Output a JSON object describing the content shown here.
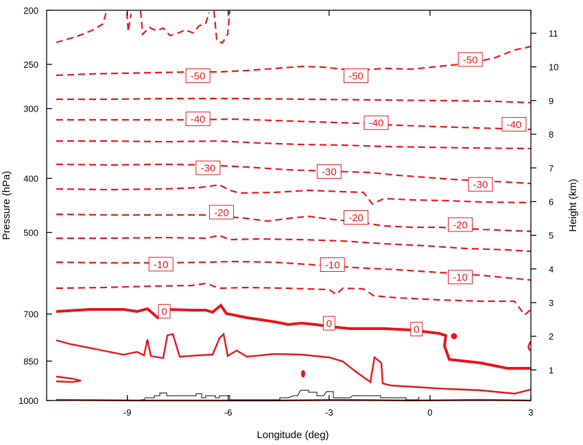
{
  "chart_data": {
    "type": "contour",
    "xlabel": "Longitude (deg)",
    "ylabel": "Pressure (hPa)",
    "y2label": "Height (km)",
    "xlim": [
      -11.4,
      3
    ],
    "x_ticks": [
      -9,
      -6,
      -3,
      0,
      3
    ],
    "x_tick_labels": [
      "-9",
      "-6",
      "-3",
      "0",
      "3"
    ],
    "y_ticks": [
      200,
      250,
      300,
      400,
      500,
      700,
      850,
      1000
    ],
    "y_tick_labels": [
      "200",
      "250",
      "300",
      "400",
      "500",
      "700",
      "850",
      "1000"
    ],
    "y2_ticks": [
      1,
      2,
      3,
      4,
      5,
      6,
      7,
      8,
      9,
      10,
      11
    ],
    "y2_tick_labels": [
      "1",
      "2",
      "3",
      "4",
      "5",
      "6",
      "7",
      "8",
      "9",
      "10",
      "11"
    ],
    "line_color": "#e8141b",
    "terrain_color": "#000000",
    "contour_labels": [
      {
        "text": "-50",
        "x": -6.9,
        "p": 262
      },
      {
        "text": "-50",
        "x": -2.2,
        "p": 262
      },
      {
        "text": "-50",
        "x": 1.2,
        "p": 245
      },
      {
        "text": "-40",
        "x": -6.9,
        "p": 313
      },
      {
        "text": "-40",
        "x": -1.6,
        "p": 318
      },
      {
        "text": "-40",
        "x": 2.5,
        "p": 320
      },
      {
        "text": "-30",
        "x": -6.6,
        "p": 383
      },
      {
        "text": "-30",
        "x": -3.0,
        "p": 389
      },
      {
        "text": "-30",
        "x": 1.5,
        "p": 410
      },
      {
        "text": "-20",
        "x": -6.2,
        "p": 460
      },
      {
        "text": "-20",
        "x": -2.2,
        "p": 470
      },
      {
        "text": "-20",
        "x": 0.9,
        "p": 484
      },
      {
        "text": "-10",
        "x": -8.0,
        "p": 570
      },
      {
        "text": "-10",
        "x": -2.9,
        "p": 571
      },
      {
        "text": "-10",
        "x": 0.9,
        "p": 601
      },
      {
        "text": "0",
        "x": -7.9,
        "p": 692
      },
      {
        "text": "0",
        "x": -3.0,
        "p": 727
      },
      {
        "text": "0",
        "x": -0.4,
        "p": 745
      }
    ]
  }
}
